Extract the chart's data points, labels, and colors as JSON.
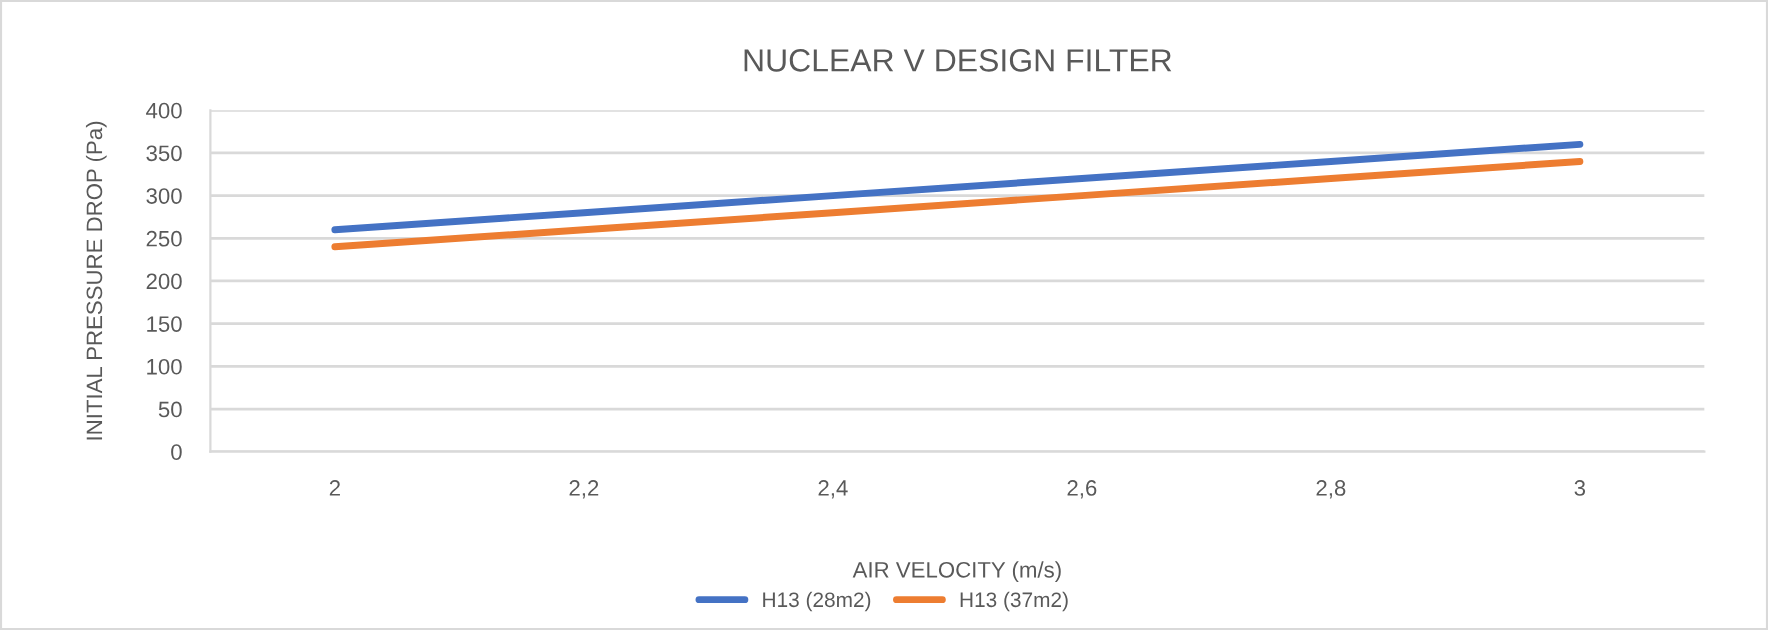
{
  "chart_data": {
    "type": "line",
    "title": "NUCLEAR V DESIGN FILTER",
    "xlabel": "AIR VELOCITY (m/s)",
    "ylabel": "INITIAL PRESSURE DROP (Pa)",
    "categories": [
      "2",
      "2,2",
      "2,4",
      "2,6",
      "2,8",
      "3"
    ],
    "series": [
      {
        "name": "H13 (28m2)",
        "color": "#4472c4",
        "values": [
          260,
          280,
          300,
          320,
          340,
          360
        ]
      },
      {
        "name": "H13 (37m2)",
        "color": "#ed7d31",
        "values": [
          240,
          260,
          280,
          300,
          320,
          340
        ]
      }
    ],
    "ylim": [
      0,
      400
    ],
    "yticks": [
      0,
      50,
      100,
      150,
      200,
      250,
      300,
      350,
      400
    ],
    "grid": "y",
    "legend": "bottom"
  }
}
